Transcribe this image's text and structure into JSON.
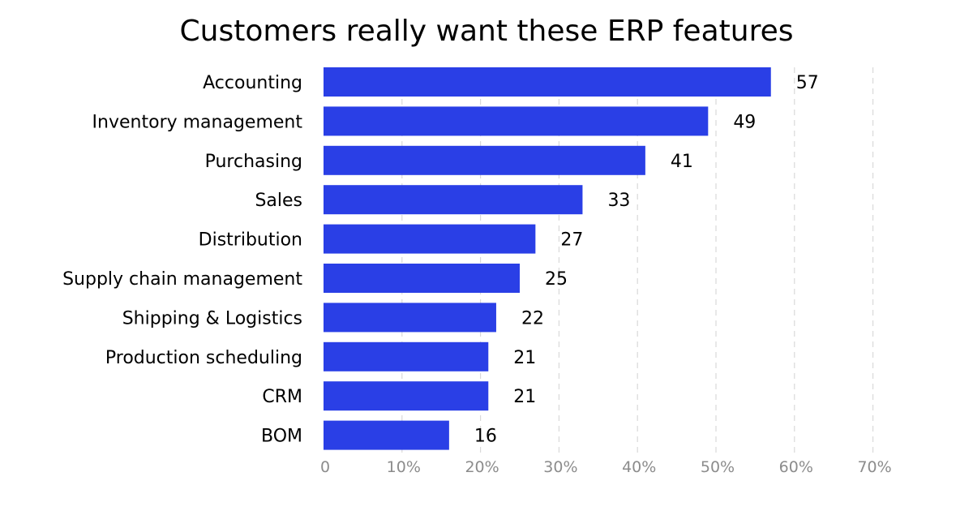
{
  "chart_data": {
    "type": "bar",
    "orientation": "horizontal",
    "title": "Customers really want these ERP features",
    "categories": [
      "Accounting",
      "Inventory management",
      "Purchasing",
      "Sales",
      "Distribution",
      "Supply chain management",
      "Shipping & Logistics",
      "Production scheduling",
      "CRM",
      "BOM"
    ],
    "values": [
      57,
      49,
      41,
      33,
      27,
      25,
      22,
      21,
      21,
      16
    ],
    "xlim": [
      0,
      70
    ],
    "xticks": [
      0,
      10,
      20,
      30,
      40,
      50,
      60,
      70
    ],
    "xtick_labels": [
      "0",
      "10%",
      "20%",
      "30%",
      "40%",
      "50%",
      "60%",
      "70%"
    ],
    "xlabel": "",
    "ylabel": "",
    "grid": "vertical dashed",
    "bar_color": "#2a3fe6"
  }
}
